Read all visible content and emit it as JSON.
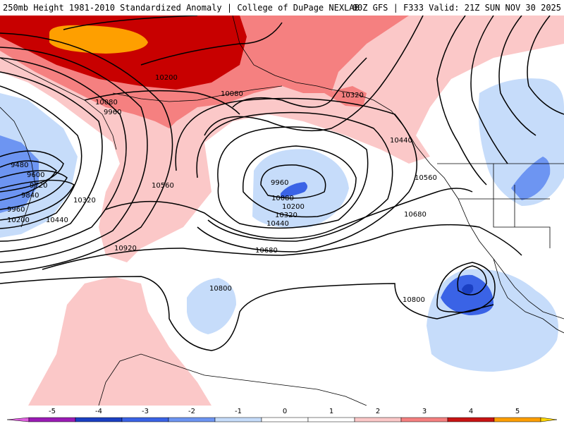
{
  "header": {
    "title": "250mb Height 1981-2010 Standardized Anomaly | College of DuPage NEXLAB",
    "run_info": "00Z GFS | F333 Valid: 21Z SUN NOV 30 2025"
  },
  "contour_labels": {
    "c9480": "9480",
    "c9600": "9600",
    "c9720": "9720",
    "c9840": "9840",
    "c9960_w": "9960",
    "c9960_n": "9960",
    "c9960_low": "9960",
    "c10080_n": "10080",
    "c10080_c": "10080",
    "c10080_low": "10080",
    "c10200_w": "10200",
    "c10200_n": "10200",
    "c10200_low": "10200",
    "c10320_w": "10320",
    "c10320_n": "10320",
    "c10320_low": "10320",
    "c10440_w": "10440",
    "c10440_e": "10440",
    "c10440_low": "10440",
    "c10560_w": "10560",
    "c10560_e": "10560",
    "c10680_c": "10680",
    "c10680_e": "10680",
    "c10800_c": "10800",
    "c10800_e": "10800",
    "c10920_w": "10920"
  },
  "colorbar": {
    "ticks": [
      "-5",
      "-4",
      "-3",
      "-2",
      "-1",
      "0",
      "1",
      "2",
      "3",
      "4",
      "5"
    ],
    "colors": [
      "#9b1bb5",
      "#1a3fc2",
      "#3a63e6",
      "#6d95f2",
      "#c6dcfa",
      "#ffffff",
      "#ffffff",
      "#fbc8c8",
      "#f58080",
      "#c81414",
      "#fe9f00"
    ],
    "end_low": "#e060e0",
    "end_high": "#ffd700"
  },
  "anomaly_colors": {
    "pos1": "#fbc8c8",
    "pos2": "#f58080",
    "pos3": "#c80000",
    "pos4": "#fe9f00",
    "neg1": "#c6dcfa",
    "neg2": "#6d95f2",
    "neg3": "#3a63e6",
    "neg4": "#1a3fc2"
  }
}
